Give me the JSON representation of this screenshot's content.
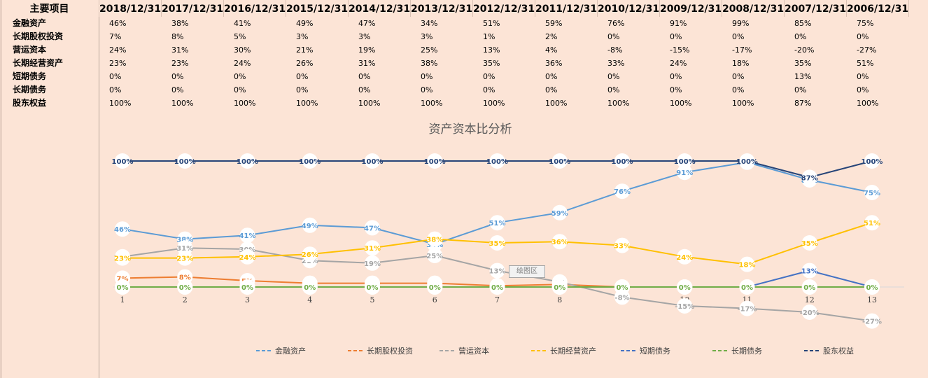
{
  "table": {
    "header_label": "主要项目",
    "dates": [
      "2018/12/31",
      "2017/12/31",
      "2016/12/31",
      "2015/12/31",
      "2014/12/31",
      "2013/12/31",
      "2012/12/31",
      "2011/12/31",
      "2010/12/31",
      "2009/12/31",
      "2008/12/31",
      "2007/12/31",
      "2006/12/31"
    ],
    "rows": [
      {
        "label": "金融资产",
        "values": [
          "46%",
          "38%",
          "41%",
          "49%",
          "47%",
          "34%",
          "51%",
          "59%",
          "76%",
          "91%",
          "99%",
          "85%",
          "75%"
        ]
      },
      {
        "label": "长期股权投资",
        "values": [
          "7%",
          "8%",
          "5%",
          "3%",
          "3%",
          "3%",
          "1%",
          "2%",
          "0%",
          "0%",
          "0%",
          "0%",
          "0%"
        ]
      },
      {
        "label": "营运资本",
        "values": [
          "24%",
          "31%",
          "30%",
          "21%",
          "19%",
          "25%",
          "13%",
          "4%",
          "-8%",
          "-15%",
          "-17%",
          "-20%",
          "-27%"
        ]
      },
      {
        "label": "长期经营资产",
        "values": [
          "23%",
          "23%",
          "24%",
          "26%",
          "31%",
          "38%",
          "35%",
          "36%",
          "33%",
          "24%",
          "18%",
          "35%",
          "51%"
        ]
      },
      {
        "label": "短期债务",
        "values": [
          "0%",
          "0%",
          "0%",
          "0%",
          "0%",
          "0%",
          "0%",
          "0%",
          "0%",
          "0%",
          "0%",
          "13%",
          "0%"
        ]
      },
      {
        "label": "长期债务",
        "values": [
          "0%",
          "0%",
          "0%",
          "0%",
          "0%",
          "0%",
          "0%",
          "0%",
          "0%",
          "0%",
          "0%",
          "0%",
          "0%"
        ]
      },
      {
        "label": "股东权益",
        "values": [
          "100%",
          "100%",
          "100%",
          "100%",
          "100%",
          "100%",
          "100%",
          "100%",
          "100%",
          "100%",
          "100%",
          "87%",
          "100%"
        ]
      }
    ]
  },
  "tooltip": "绘图区",
  "chart_data": {
    "type": "line",
    "title": "资产资本比分析",
    "categories": [
      "1",
      "2",
      "3",
      "4",
      "5",
      "6",
      "7",
      "8",
      "9",
      "10",
      "11",
      "12",
      "13"
    ],
    "ylim": [
      -35,
      110
    ],
    "grid": false,
    "legend_position": "bottom",
    "series": [
      {
        "name": "金融资产",
        "color": "#5b9bd5",
        "values": [
          46,
          38,
          41,
          49,
          47,
          34,
          51,
          59,
          76,
          91,
          99,
          85,
          75
        ]
      },
      {
        "name": "长期股权投资",
        "color": "#ed7d31",
        "values": [
          7,
          8,
          5,
          3,
          3,
          3,
          1,
          2,
          0,
          0,
          0,
          0,
          0
        ]
      },
      {
        "name": "营运资本",
        "color": "#a5a5a5",
        "values": [
          24,
          31,
          30,
          21,
          19,
          25,
          13,
          4,
          -8,
          -15,
          -17,
          -20,
          -27
        ]
      },
      {
        "name": "长期经营资产",
        "color": "#ffc000",
        "values": [
          23,
          23,
          24,
          26,
          31,
          38,
          35,
          36,
          33,
          24,
          18,
          35,
          51
        ]
      },
      {
        "name": "短期债务",
        "color": "#4472c4",
        "values": [
          0,
          0,
          0,
          0,
          0,
          0,
          0,
          0,
          0,
          0,
          0,
          13,
          0
        ]
      },
      {
        "name": "长期债务",
        "color": "#70ad47",
        "values": [
          0,
          0,
          0,
          0,
          0,
          0,
          0,
          0,
          0,
          0,
          0,
          0,
          0
        ]
      },
      {
        "name": "股东权益",
        "color": "#264478",
        "values": [
          100,
          100,
          100,
          100,
          100,
          100,
          100,
          100,
          100,
          100,
          100,
          87,
          100
        ]
      }
    ]
  }
}
